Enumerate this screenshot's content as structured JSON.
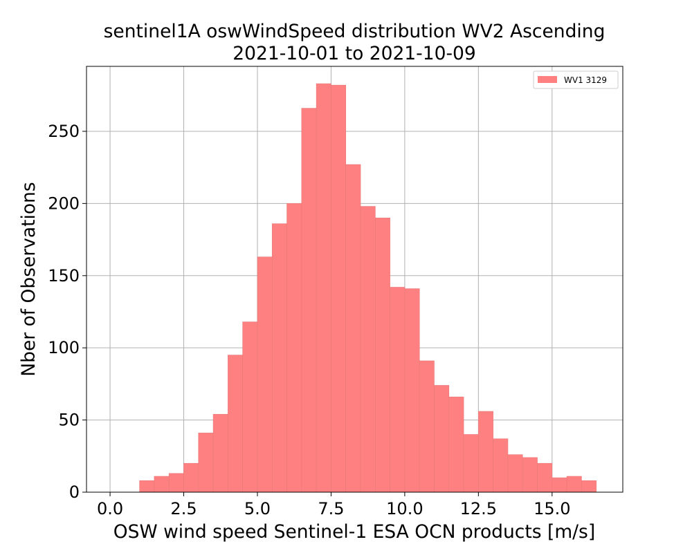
{
  "chart_data": {
    "type": "bar",
    "title": "sentinel1A oswWindSpeed distribution WV2 Ascending",
    "subtitle": "2021-10-01 to 2021-10-09",
    "xlabel": "OSW wind speed Sentinel-1 ESA OCN products [m/s]",
    "ylabel": "Nber of Observations",
    "xlim": [
      -0.8,
      17.4
    ],
    "ylim": [
      0,
      295
    ],
    "xticks": [
      "0.0",
      "2.5",
      "5.0",
      "7.5",
      "10.0",
      "12.5",
      "15.0"
    ],
    "xtick_values": [
      0,
      2.5,
      5,
      7.5,
      10,
      12.5,
      15
    ],
    "yticks": [
      "0",
      "50",
      "100",
      "150",
      "200",
      "250"
    ],
    "ytick_values": [
      0,
      50,
      100,
      150,
      200,
      250
    ],
    "grid": true,
    "legend_position": "top-right",
    "series": [
      {
        "name": "WV1 3129",
        "color": "#ff8080",
        "bin_edges": [
          1.0,
          1.5,
          2.0,
          2.5,
          3.0,
          3.5,
          4.0,
          4.5,
          5.0,
          5.5,
          6.0,
          6.5,
          7.0,
          7.5,
          8.0,
          8.5,
          9.0,
          9.5,
          10.0,
          10.5,
          11.0,
          11.5,
          12.0,
          12.5,
          13.0,
          13.5,
          14.0,
          14.5,
          15.0,
          15.5,
          16.0,
          16.5
        ],
        "values": [
          8,
          11,
          13,
          20,
          41,
          54,
          95,
          118,
          163,
          186,
          200,
          266,
          283,
          282,
          227,
          198,
          190,
          142,
          141,
          91,
          74,
          66,
          40,
          56,
          37,
          26,
          24,
          20,
          10,
          11,
          8
        ]
      }
    ]
  }
}
